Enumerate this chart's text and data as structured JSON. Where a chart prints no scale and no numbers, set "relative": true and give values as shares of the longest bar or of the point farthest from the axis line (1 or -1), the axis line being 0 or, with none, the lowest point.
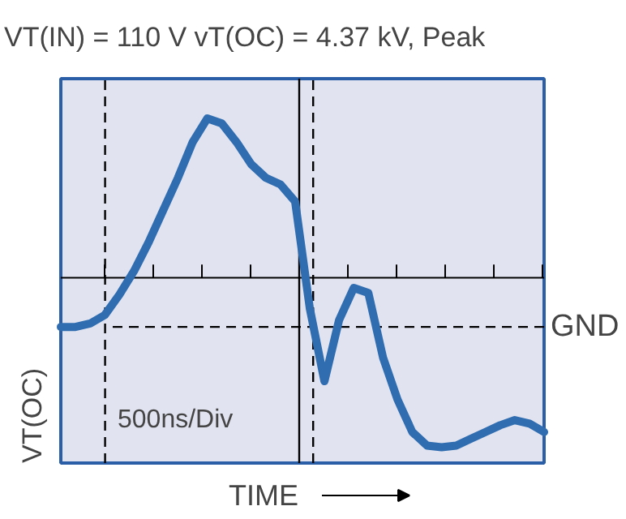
{
  "chart_data": {
    "type": "line",
    "title": "VT(IN) = 110 V  vT(OC) = 4.37 kV, Peak",
    "xlabel": "TIME",
    "ylabel": "VT(OC)",
    "relative": true,
    "tick_labels": false,
    "marker": "none",
    "line_style": "solid",
    "annotations": [
      "500ns/Div"
    ],
    "categories": [
      null,
      null,
      null,
      null,
      null,
      null,
      null,
      null,
      null,
      null,
      null,
      null,
      null,
      null,
      null,
      null,
      null,
      null,
      null,
      null,
      null,
      null,
      null,
      null,
      null,
      null,
      null,
      null,
      null,
      null,
      null,
      null,
      null,
      null
    ],
    "series": [
      {
        "color": "#2f6db0",
        "values": [
          -0.29,
          -0.29,
          -0.27,
          -0.22,
          -0.1,
          0.04,
          0.21,
          0.4,
          0.59,
          0.8,
          0.94,
          0.91,
          0.8,
          0.67,
          0.59,
          0.55,
          0.45,
          -0.18,
          -0.61,
          -0.25,
          -0.06,
          -0.09,
          -0.47,
          -0.72,
          -0.91,
          -0.99,
          -1,
          -0.99,
          -0.95,
          -0.91,
          -0.87,
          -0.84,
          -0.86,
          -0.91
        ]
      }
    ],
    "ref_lines": [
      {
        "axis": "y",
        "value": -0.29,
        "label": "GND",
        "line_style": "dashed",
        "color": "#000000"
      }
    ]
  }
}
